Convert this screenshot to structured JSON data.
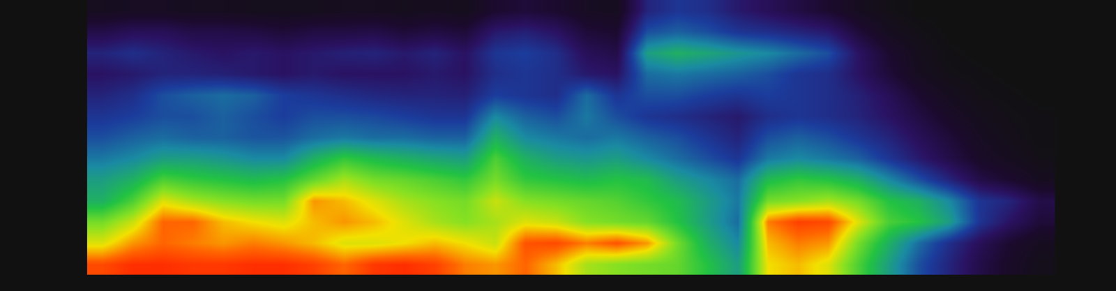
{
  "chart_data": {
    "type": "heatmap",
    "tick_labels": false,
    "zlim": [
      0,
      100
    ],
    "z": [
      [
        95,
        98,
        98,
        97,
        97,
        98,
        98,
        96,
        92,
        97,
        98,
        96,
        90,
        88,
        92,
        85,
        75,
        72,
        70,
        68,
        60,
        50,
        82,
        85,
        80,
        65,
        50,
        35,
        25,
        15,
        8,
        3
      ],
      [
        80,
        88,
        92,
        90,
        88,
        90,
        88,
        85,
        80,
        80,
        82,
        85,
        82,
        78,
        94,
        95,
        90,
        94,
        88,
        70,
        55,
        45,
        85,
        90,
        88,
        70,
        55,
        40,
        28,
        18,
        10,
        5
      ],
      [
        70,
        78,
        92,
        92,
        85,
        82,
        80,
        85,
        88,
        85,
        80,
        75,
        72,
        75,
        80,
        78,
        72,
        70,
        68,
        60,
        50,
        40,
        90,
        96,
        95,
        80,
        65,
        60,
        50,
        30,
        20,
        12
      ],
      [
        55,
        65,
        80,
        75,
        72,
        70,
        70,
        88,
        85,
        80,
        75,
        72,
        70,
        78,
        72,
        70,
        68,
        66,
        62,
        58,
        50,
        42,
        70,
        72,
        75,
        70,
        60,
        55,
        45,
        30,
        25,
        15
      ],
      [
        50,
        55,
        65,
        62,
        60,
        58,
        60,
        68,
        75,
        70,
        68,
        65,
        62,
        70,
        62,
        60,
        58,
        60,
        58,
        50,
        45,
        40,
        58,
        62,
        60,
        55,
        45,
        35,
        25,
        15,
        10,
        5
      ],
      [
        42,
        45,
        50,
        50,
        48,
        45,
        45,
        55,
        62,
        58,
        55,
        52,
        50,
        65,
        55,
        50,
        48,
        50,
        45,
        40,
        35,
        30,
        42,
        45,
        42,
        38,
        30,
        22,
        15,
        8,
        5,
        2
      ],
      [
        35,
        38,
        40,
        38,
        38,
        36,
        36,
        40,
        42,
        40,
        40,
        38,
        38,
        55,
        45,
        42,
        40,
        42,
        38,
        35,
        30,
        25,
        35,
        38,
        35,
        30,
        25,
        18,
        12,
        6,
        3,
        1
      ],
      [
        30,
        32,
        35,
        35,
        38,
        35,
        32,
        35,
        35,
        34,
        32,
        30,
        30,
        45,
        38,
        35,
        42,
        35,
        30,
        28,
        25,
        22,
        28,
        30,
        28,
        25,
        20,
        14,
        8,
        4,
        2,
        1
      ],
      [
        25,
        28,
        35,
        38,
        40,
        38,
        32,
        30,
        28,
        26,
        25,
        25,
        24,
        32,
        30,
        28,
        40,
        30,
        35,
        35,
        32,
        30,
        32,
        30,
        28,
        24,
        18,
        10,
        5,
        2,
        1,
        0
      ],
      [
        20,
        22,
        25,
        25,
        24,
        22,
        20,
        22,
        20,
        20,
        20,
        22,
        20,
        28,
        30,
        28,
        22,
        20,
        40,
        42,
        40,
        38,
        35,
        30,
        28,
        20,
        12,
        5,
        2,
        1,
        0,
        0
      ],
      [
        25,
        28,
        25,
        22,
        20,
        22,
        20,
        22,
        24,
        25,
        22,
        25,
        20,
        30,
        32,
        28,
        18,
        15,
        50,
        55,
        52,
        48,
        45,
        40,
        35,
        20,
        10,
        4,
        1,
        0,
        0,
        0
      ],
      [
        15,
        18,
        18,
        15,
        15,
        14,
        12,
        14,
        14,
        15,
        12,
        14,
        12,
        22,
        24,
        20,
        12,
        10,
        35,
        38,
        35,
        30,
        28,
        25,
        22,
        12,
        5,
        2,
        0,
        0,
        0,
        0
      ],
      [
        5,
        6,
        6,
        5,
        5,
        4,
        4,
        4,
        5,
        5,
        4,
        5,
        4,
        10,
        12,
        10,
        6,
        5,
        25,
        30,
        28,
        22,
        18,
        14,
        10,
        5,
        2,
        0,
        0,
        0,
        0,
        0
      ]
    ]
  }
}
